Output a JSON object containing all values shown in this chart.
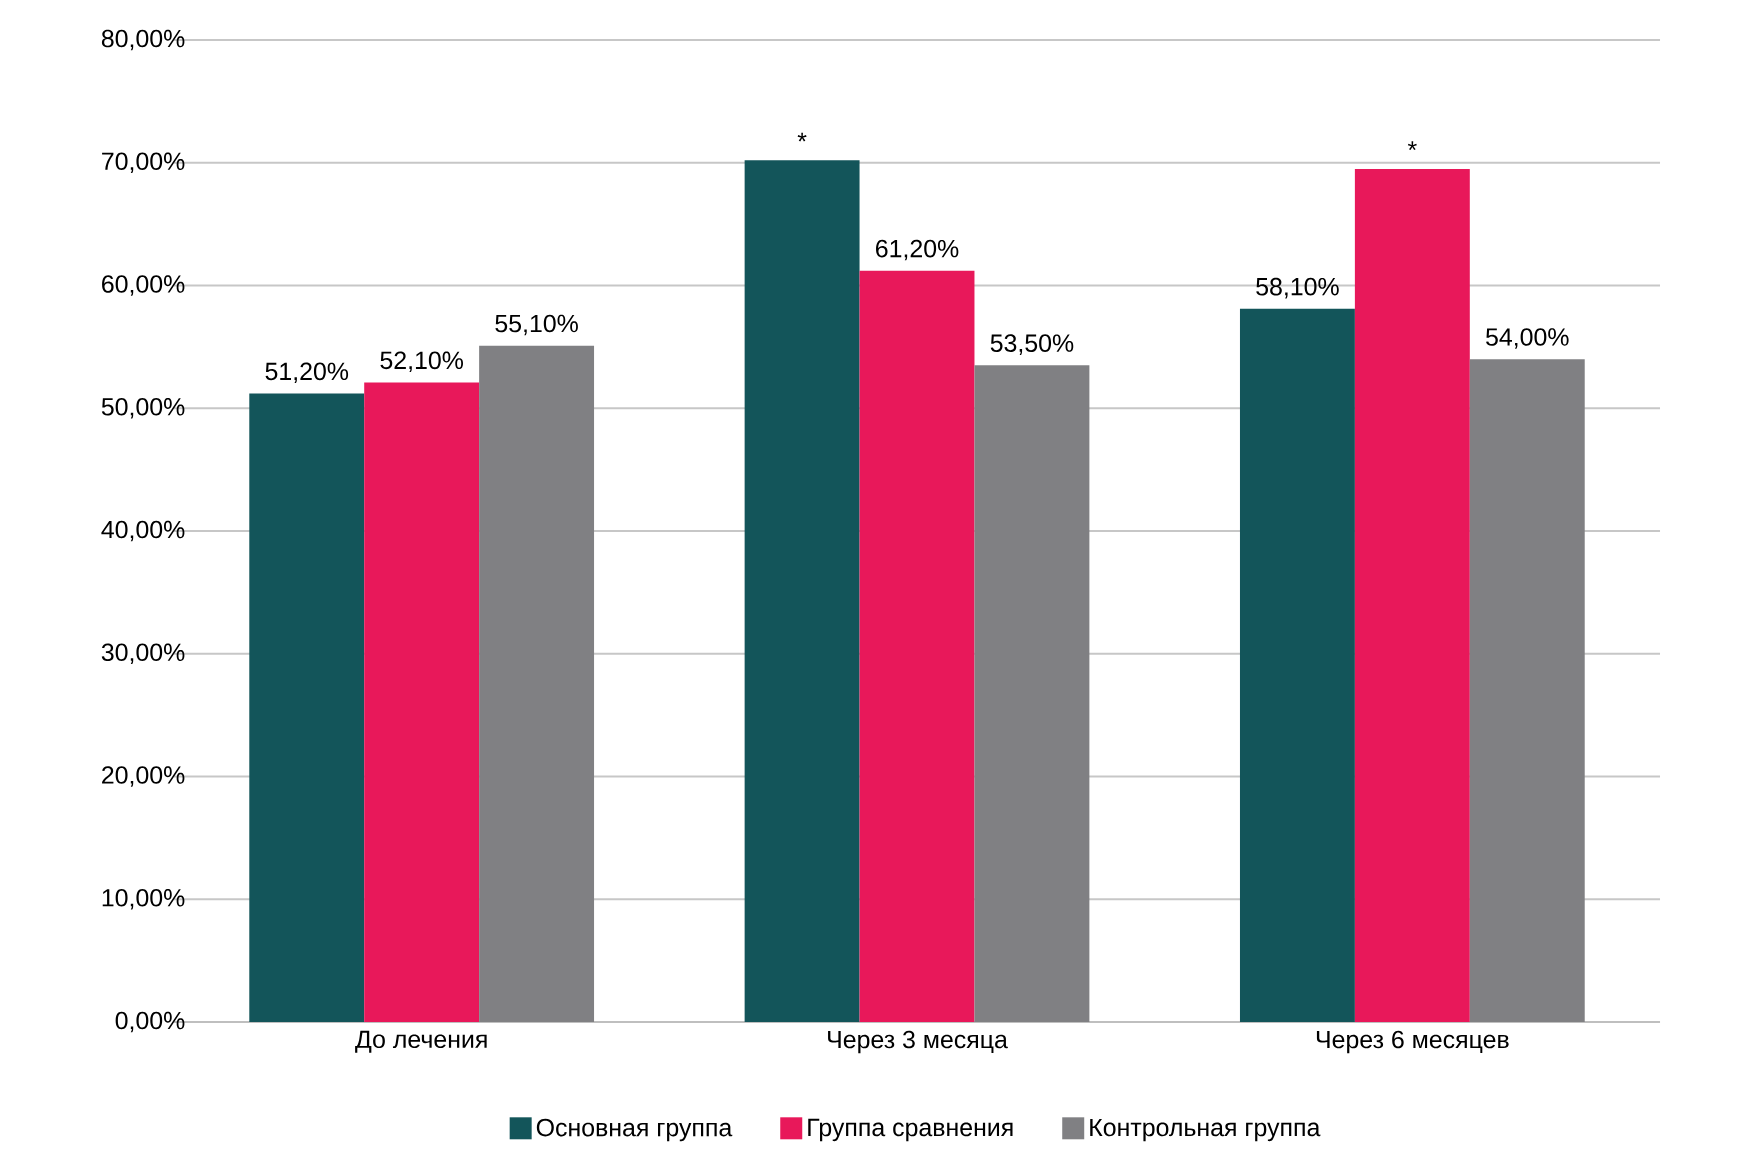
{
  "chart_data": {
    "type": "bar",
    "categories": [
      "До лечения",
      "Через 3 месяца",
      "Через 6 месяцев"
    ],
    "series": [
      {
        "name": "Основная группа",
        "color": "#13555a",
        "values": [
          51.2,
          70.2,
          58.1
        ],
        "value_labels": [
          "51,20%",
          "*",
          "58,10%"
        ]
      },
      {
        "name": "Группа сравнения",
        "color": "#e8185a",
        "values": [
          52.1,
          61.2,
          69.5
        ],
        "value_labels": [
          "52,10%",
          "61,20%",
          "*"
        ]
      },
      {
        "name": "Контрольная группа",
        "color": "#808083",
        "values": [
          55.1,
          53.5,
          54.0
        ],
        "value_labels": [
          "55,10%",
          "53,50%",
          "54,00%"
        ]
      }
    ],
    "ylim": [
      0,
      80
    ],
    "yticks": [
      {
        "value": 0,
        "label": "0,00%"
      },
      {
        "value": 10,
        "label": "10,00%"
      },
      {
        "value": 20,
        "label": "20,00%"
      },
      {
        "value": 30,
        "label": "30,00%"
      },
      {
        "value": 40,
        "label": "40,00%"
      },
      {
        "value": 50,
        "label": "50,00%"
      },
      {
        "value": 60,
        "label": "60,00%"
      },
      {
        "value": 70,
        "label": "70,00%"
      },
      {
        "value": 80,
        "label": "80,00%"
      }
    ],
    "grid": "y",
    "legend": "bottom"
  }
}
